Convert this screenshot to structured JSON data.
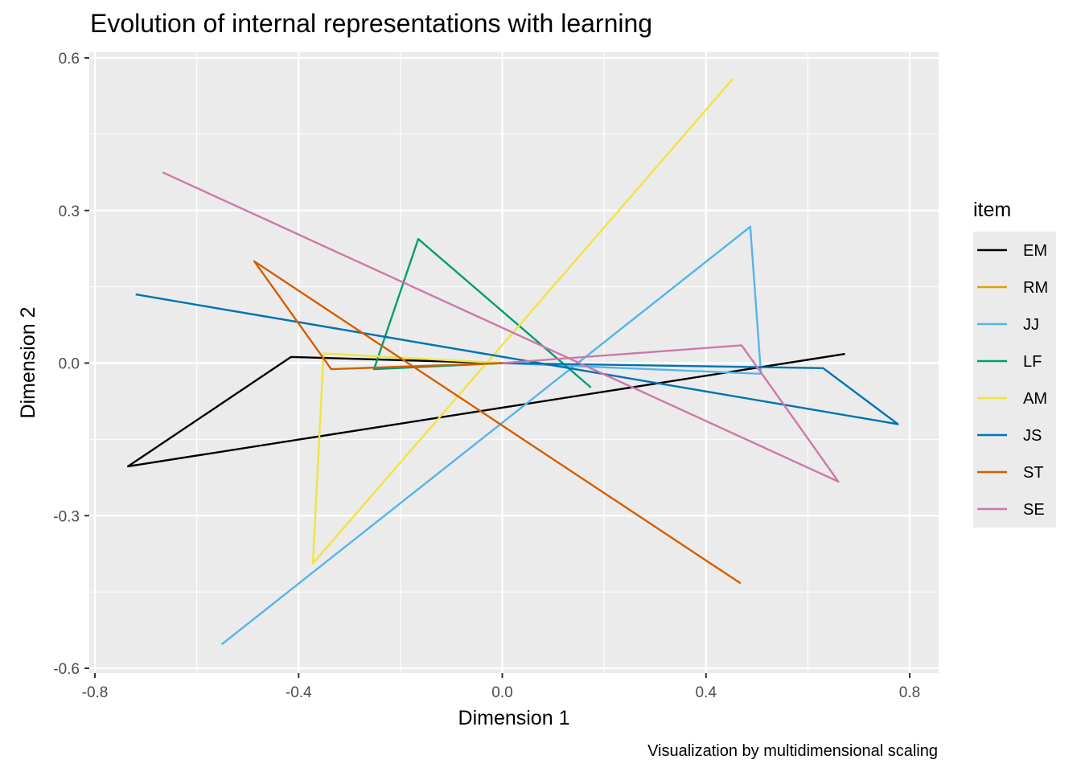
{
  "chart_data": {
    "type": "line",
    "title": "Evolution of internal representations with learning",
    "xlabel": "Dimension 1",
    "ylabel": "Dimension 2",
    "caption": "Visualization by multidimensional scaling",
    "xlim": [
      -0.8,
      0.8
    ],
    "ylim": [
      -0.6,
      0.6
    ],
    "x_ticks": [
      -0.8,
      -0.4,
      0.0,
      0.4,
      0.8
    ],
    "x_tick_labels": [
      "-0.8",
      "-0.4",
      "0.0",
      "0.4",
      "0.8"
    ],
    "y_ticks": [
      -0.6,
      -0.3,
      0.0,
      0.3,
      0.6
    ],
    "y_tick_labels": [
      "-0.6",
      "-0.3",
      "0.0",
      "0.3",
      "0.6"
    ],
    "grid": true,
    "background": "#ebebeb",
    "legend": {
      "title": "item",
      "position": "right"
    },
    "series": [
      {
        "name": "EM",
        "color": "#000000",
        "points": [
          [
            0.673,
            0.018
          ],
          [
            -0.735,
            -0.203
          ],
          [
            -0.415,
            0.012
          ],
          [
            0.0,
            0.0
          ]
        ]
      },
      {
        "name": "RM",
        "color": "#E69F00",
        "points": [
          [
            0.0,
            0.0
          ],
          [
            0.0,
            0.0
          ]
        ]
      },
      {
        "name": "JJ",
        "color": "#56B4E9",
        "points": [
          [
            -0.551,
            -0.553
          ],
          [
            0.487,
            0.268
          ],
          [
            0.508,
            -0.021
          ],
          [
            0.0,
            0.0
          ]
        ]
      },
      {
        "name": "LF",
        "color": "#009E73",
        "points": [
          [
            0.174,
            -0.048
          ],
          [
            -0.165,
            0.244
          ],
          [
            -0.252,
            -0.012
          ],
          [
            0.0,
            0.0
          ]
        ]
      },
      {
        "name": "AM",
        "color": "#F0E442",
        "points": [
          [
            0.453,
            0.559
          ],
          [
            -0.372,
            -0.394
          ],
          [
            -0.351,
            0.019
          ],
          [
            0.0,
            0.0
          ]
        ]
      },
      {
        "name": "JS",
        "color": "#0072B2",
        "points": [
          [
            -0.72,
            0.135
          ],
          [
            0.777,
            -0.12
          ],
          [
            0.63,
            -0.01
          ],
          [
            0.0,
            0.0
          ]
        ]
      },
      {
        "name": "ST",
        "color": "#D55E00",
        "points": [
          [
            0.468,
            -0.433
          ],
          [
            -0.487,
            0.2
          ],
          [
            -0.336,
            -0.012
          ],
          [
            0.0,
            0.0
          ]
        ]
      },
      {
        "name": "SE",
        "color": "#CC79A7",
        "points": [
          [
            -0.667,
            0.375
          ],
          [
            0.66,
            -0.233
          ],
          [
            0.47,
            0.035
          ],
          [
            0.0,
            0.0
          ]
        ]
      }
    ]
  }
}
